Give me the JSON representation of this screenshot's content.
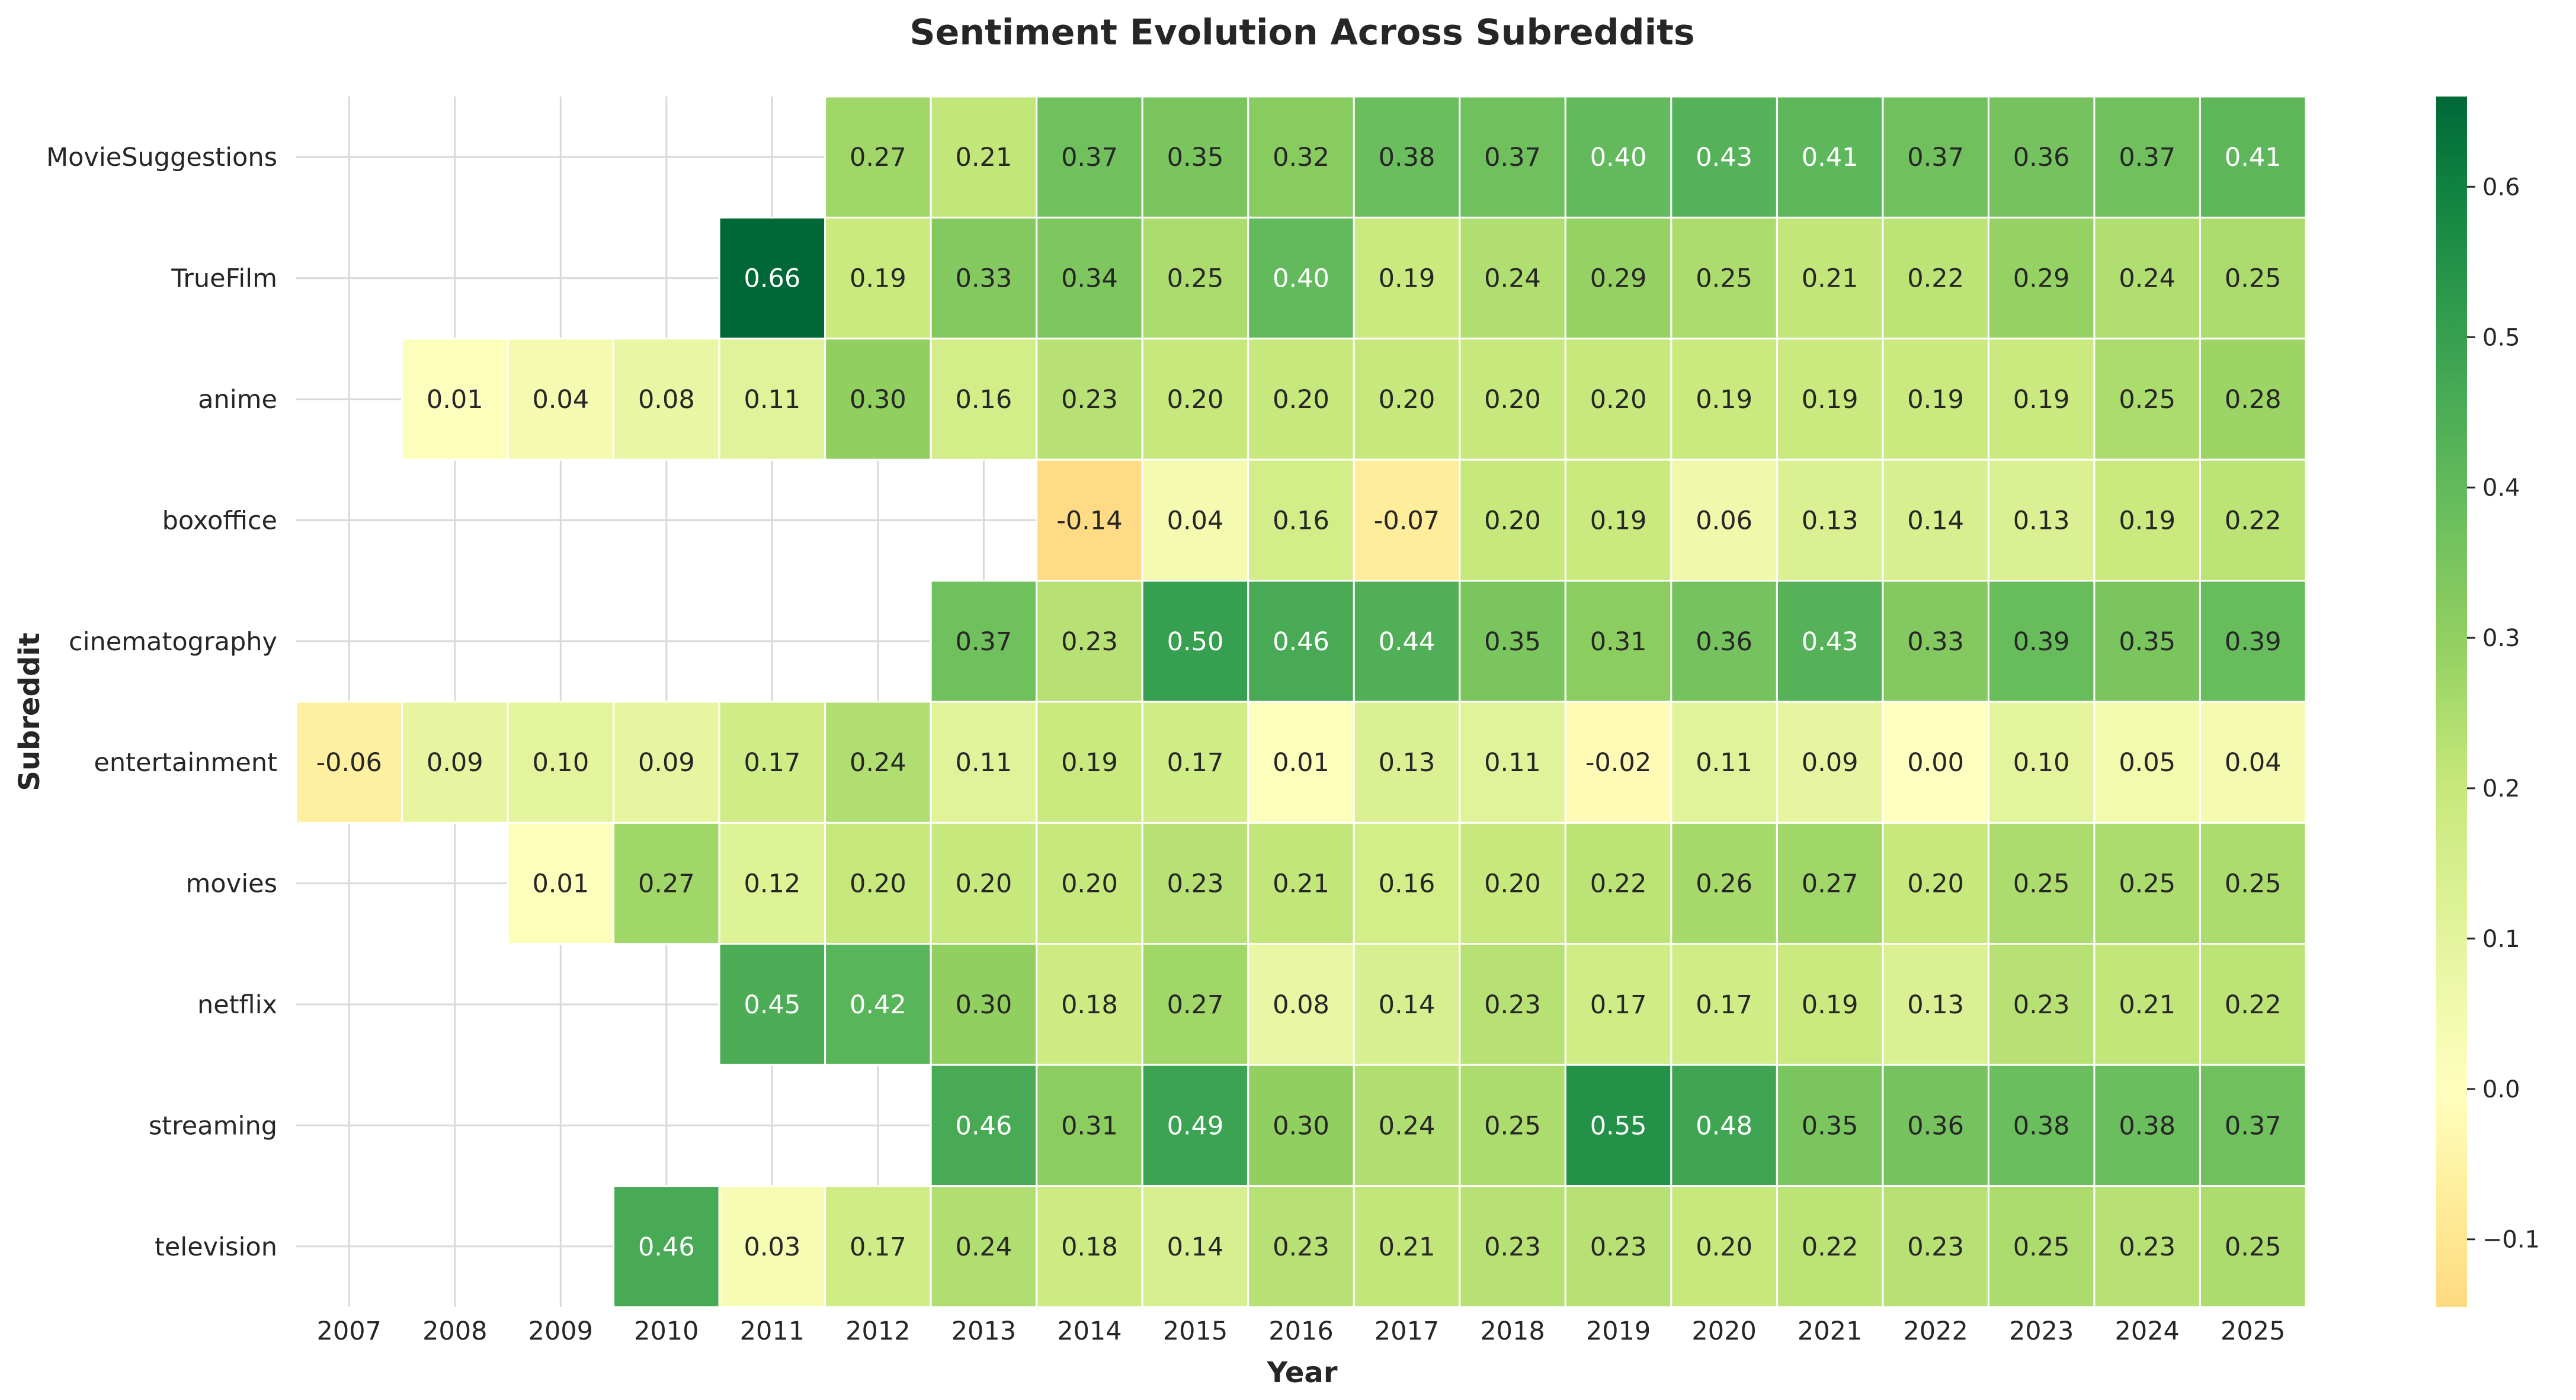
{
  "chart_data": {
    "type": "heatmap",
    "title": "Sentiment Evolution Across Subreddits",
    "xlabel": "Year",
    "ylabel": "Subreddit",
    "x": [
      "2007",
      "2008",
      "2009",
      "2010",
      "2011",
      "2012",
      "2013",
      "2014",
      "2015",
      "2016",
      "2017",
      "2018",
      "2019",
      "2020",
      "2021",
      "2022",
      "2023",
      "2024",
      "2025"
    ],
    "y": [
      "MovieSuggestions",
      "TrueFilm",
      "anime",
      "boxoffice",
      "cinematography",
      "entertainment",
      "movies",
      "netflix",
      "streaming",
      "television"
    ],
    "values": [
      [
        null,
        null,
        null,
        null,
        null,
        0.27,
        0.21,
        0.37,
        0.35,
        0.32,
        0.38,
        0.37,
        0.4,
        0.43,
        0.41,
        0.37,
        0.36,
        0.37,
        0.41
      ],
      [
        null,
        null,
        null,
        null,
        0.66,
        0.19,
        0.33,
        0.34,
        0.25,
        0.4,
        0.19,
        0.24,
        0.29,
        0.25,
        0.21,
        0.22,
        0.29,
        0.24,
        0.25
      ],
      [
        null,
        0.01,
        0.04,
        0.08,
        0.11,
        0.3,
        0.16,
        0.23,
        0.2,
        0.2,
        0.2,
        0.2,
        0.2,
        0.19,
        0.19,
        0.19,
        0.19,
        0.25,
        0.28
      ],
      [
        null,
        null,
        null,
        null,
        null,
        null,
        null,
        -0.14,
        0.04,
        0.16,
        -0.07,
        0.2,
        0.19,
        0.06,
        0.13,
        0.14,
        0.13,
        0.19,
        0.22
      ],
      [
        null,
        null,
        null,
        null,
        null,
        null,
        0.37,
        0.23,
        0.5,
        0.46,
        0.44,
        0.35,
        0.31,
        0.36,
        0.43,
        0.33,
        0.39,
        0.35,
        0.39
      ],
      [
        -0.06,
        0.09,
        0.1,
        0.09,
        0.17,
        0.24,
        0.11,
        0.19,
        0.17,
        0.01,
        0.13,
        0.11,
        -0.02,
        0.11,
        0.09,
        0.0,
        0.1,
        0.05,
        0.04
      ],
      [
        null,
        null,
        0.01,
        0.27,
        0.12,
        0.2,
        0.2,
        0.2,
        0.23,
        0.21,
        0.16,
        0.2,
        0.22,
        0.26,
        0.27,
        0.2,
        0.25,
        0.25,
        0.25
      ],
      [
        null,
        null,
        null,
        null,
        0.45,
        0.42,
        0.3,
        0.18,
        0.27,
        0.08,
        0.14,
        0.23,
        0.17,
        0.17,
        0.19,
        0.13,
        0.23,
        0.21,
        0.22
      ],
      [
        null,
        null,
        null,
        null,
        null,
        null,
        0.46,
        0.31,
        0.49,
        0.3,
        0.24,
        0.25,
        0.55,
        0.48,
        0.35,
        0.36,
        0.38,
        0.38,
        0.37
      ],
      [
        null,
        null,
        null,
        0.46,
        0.03,
        0.17,
        0.24,
        0.18,
        0.14,
        0.23,
        0.21,
        0.23,
        0.23,
        0.2,
        0.22,
        0.23,
        0.25,
        0.23,
        0.25
      ]
    ],
    "value_format": "0.00",
    "colormap": "RdYlGn",
    "colorbar": {
      "vmin": -0.145,
      "vmax": 0.66,
      "center": 0.0,
      "ticks": [
        -0.1,
        0.0,
        0.1,
        0.2,
        0.3,
        0.4,
        0.5,
        0.6
      ],
      "tick_labels": [
        "−0.1",
        "0.0",
        "0.1",
        "0.2",
        "0.3",
        "0.4",
        "0.5",
        "0.6"
      ]
    },
    "grid": true
  }
}
